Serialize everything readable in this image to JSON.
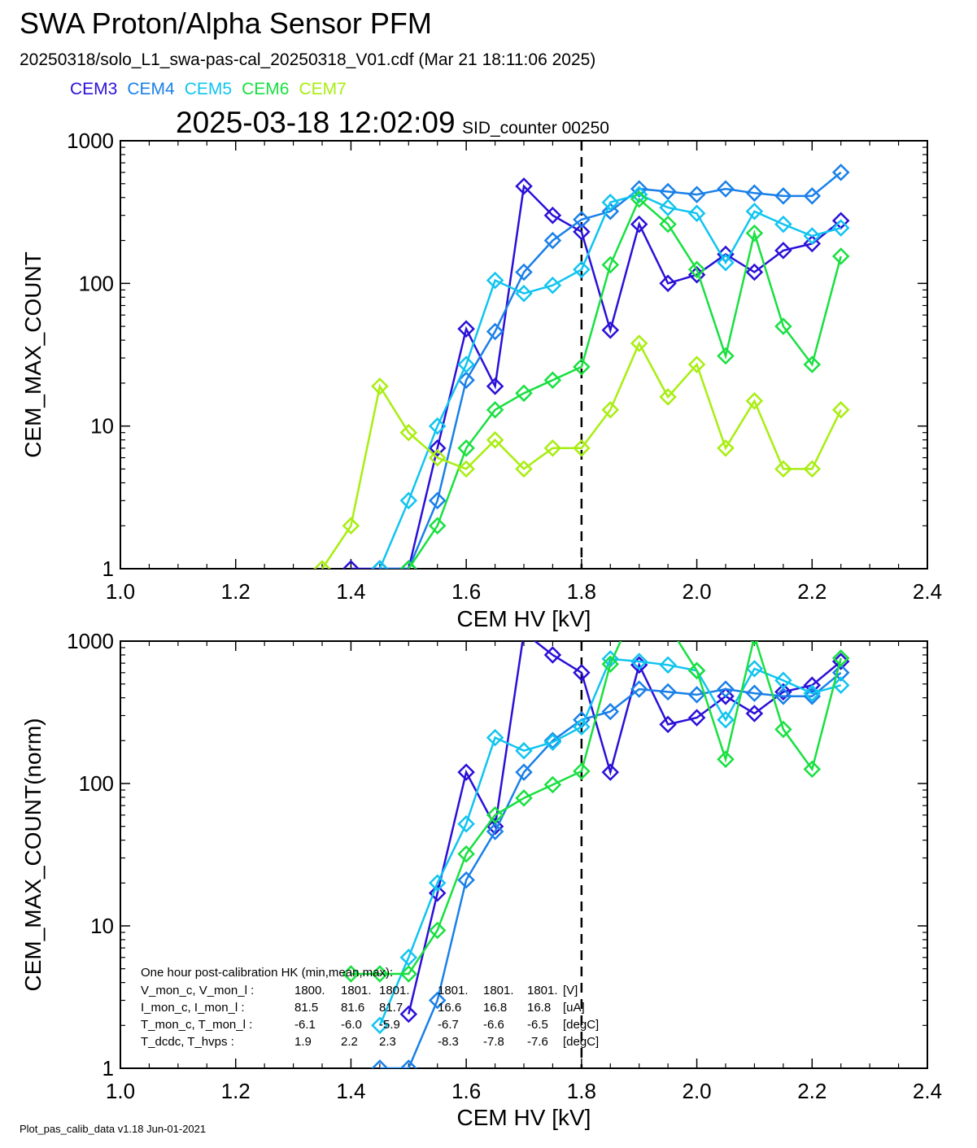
{
  "header": {
    "title": "SWA Proton/Alpha Sensor PFM",
    "subtitle": "20250318/solo_L1_swa-pas-cal_20250318_V01.cdf  (Mar 21 18:11:06 2025)",
    "timestamp": "2025-03-18 12:02:09",
    "sid": "SID_counter 00250"
  },
  "legend": [
    {
      "label": "CEM3",
      "color": "#2a10d8"
    },
    {
      "label": "CEM4",
      "color": "#1a80e8"
    },
    {
      "label": "CEM5",
      "color": "#10c4f0"
    },
    {
      "label": "CEM6",
      "color": "#18e040"
    },
    {
      "label": "CEM7",
      "color": "#a8ee10"
    }
  ],
  "footer": "Plot_pas_calib_data v1.18 Jun-01-2021",
  "hk_note": {
    "heading": "One hour post-calibration HK (min,mean,max):",
    "rows": [
      {
        "label": "V_mon_c, V_mon_l :",
        "c": [
          "1800.",
          "1801.",
          "1801."
        ],
        "l": [
          "1801.",
          "1801.",
          "1801."
        ],
        "unit": "[V]"
      },
      {
        "label": "I_mon_c,  I_mon_l :",
        "c": [
          "81.5",
          "81.6",
          "81.7"
        ],
        "l": [
          "16.6",
          "16.8",
          "16.8"
        ],
        "unit": "[uA]"
      },
      {
        "label": "T_mon_c, T_mon_l :",
        "c": [
          "-6.1",
          "-6.0",
          "-5.9"
        ],
        "l": [
          "-6.7",
          "-6.6",
          "-6.5"
        ],
        "unit": "[degC]"
      },
      {
        "label": "T_dcdc,    T_hvps :",
        "c": [
          "1.9",
          "2.2",
          "2.3"
        ],
        "l": [
          "-8.3",
          "-7.8",
          "-7.6"
        ],
        "unit": "[degC]"
      }
    ]
  },
  "chart_data": [
    {
      "type": "line",
      "xlabel": "CEM HV [kV]",
      "ylabel": "CEM_MAX_COUNT",
      "xlim": [
        1.0,
        2.4
      ],
      "ylim": [
        1,
        1000
      ],
      "yscale": "log",
      "xticks": [
        "1.0",
        "1.2",
        "1.4",
        "1.6",
        "1.8",
        "2.0",
        "2.2",
        "2.4"
      ],
      "yticks": [
        "1",
        "10",
        "100",
        "1000"
      ],
      "vline_x": 1.8,
      "x": [
        1.35,
        1.4,
        1.45,
        1.5,
        1.55,
        1.6,
        1.65,
        1.7,
        1.75,
        1.8,
        1.85,
        1.9,
        1.95,
        2.0,
        2.05,
        2.1,
        2.15,
        2.2,
        2.25
      ],
      "series": [
        {
          "name": "CEM3",
          "color": "#2a10d8",
          "values": [
            null,
            1,
            1,
            1,
            7,
            48,
            19,
            480,
            300,
            230,
            47,
            260,
            100,
            115,
            160,
            120,
            170,
            190,
            275
          ]
        },
        {
          "name": "CEM4",
          "color": "#1a80e8",
          "values": [
            null,
            null,
            1,
            1,
            3,
            21,
            46,
            120,
            200,
            280,
            320,
            460,
            440,
            420,
            460,
            430,
            410,
            410,
            600
          ]
        },
        {
          "name": "CEM5",
          "color": "#10c4f0",
          "values": [
            null,
            null,
            1,
            3,
            10,
            27,
            105,
            85,
            97,
            125,
            370,
            420,
            340,
            310,
            140,
            320,
            260,
            215,
            245
          ]
        },
        {
          "name": "CEM6",
          "color": "#18e040",
          "values": [
            null,
            null,
            null,
            1,
            2,
            7,
            13,
            17,
            21,
            26,
            135,
            390,
            260,
            125,
            31,
            225,
            50,
            27,
            155
          ]
        },
        {
          "name": "CEM7",
          "color": "#a8ee10",
          "values": [
            1,
            2,
            19,
            9,
            6,
            5,
            8,
            5,
            7,
            7,
            13,
            38,
            16,
            27,
            7,
            15,
            5,
            5,
            13
          ]
        }
      ]
    },
    {
      "type": "line",
      "xlabel": "CEM HV [kV]",
      "ylabel": "CEM_MAX_COUNT(norm)",
      "xlim": [
        1.0,
        2.4
      ],
      "ylim": [
        1,
        1000
      ],
      "yscale": "log",
      "xticks": [
        "1.0",
        "1.2",
        "1.4",
        "1.6",
        "1.8",
        "2.0",
        "2.2",
        "2.4"
      ],
      "yticks": [
        "1",
        "10",
        "100",
        "1000"
      ],
      "vline_x": 1.8,
      "x": [
        1.35,
        1.4,
        1.45,
        1.5,
        1.55,
        1.6,
        1.65,
        1.7,
        1.75,
        1.8,
        1.85,
        1.9,
        1.95,
        2.0,
        2.05,
        2.1,
        2.15,
        2.2,
        2.25
      ],
      "series": [
        {
          "name": "CEM3",
          "color": "#2a10d8",
          "values": [
            null,
            null,
            null,
            2.4,
            17,
            120,
            50,
            1150,
            800,
            600,
            120,
            680,
            260,
            290,
            410,
            310,
            440,
            490,
            720
          ]
        },
        {
          "name": "CEM4",
          "color": "#1a80e8",
          "values": [
            null,
            null,
            1,
            1,
            3,
            21,
            46,
            120,
            200,
            280,
            320,
            460,
            440,
            420,
            460,
            430,
            410,
            410,
            600
          ]
        },
        {
          "name": "CEM5",
          "color": "#10c4f0",
          "values": [
            null,
            null,
            2,
            6,
            20,
            52,
            210,
            170,
            195,
            250,
            750,
            720,
            680,
            620,
            280,
            640,
            530,
            430,
            490
          ]
        },
        {
          "name": "CEM6",
          "color": "#18e040",
          "values": [
            null,
            4.6,
            4.6,
            4.6,
            9.3,
            32,
            60,
            79,
            98,
            122,
            690,
            1950,
            1300,
            620,
            148,
            1080,
            240,
            126,
            760
          ]
        }
      ]
    }
  ]
}
